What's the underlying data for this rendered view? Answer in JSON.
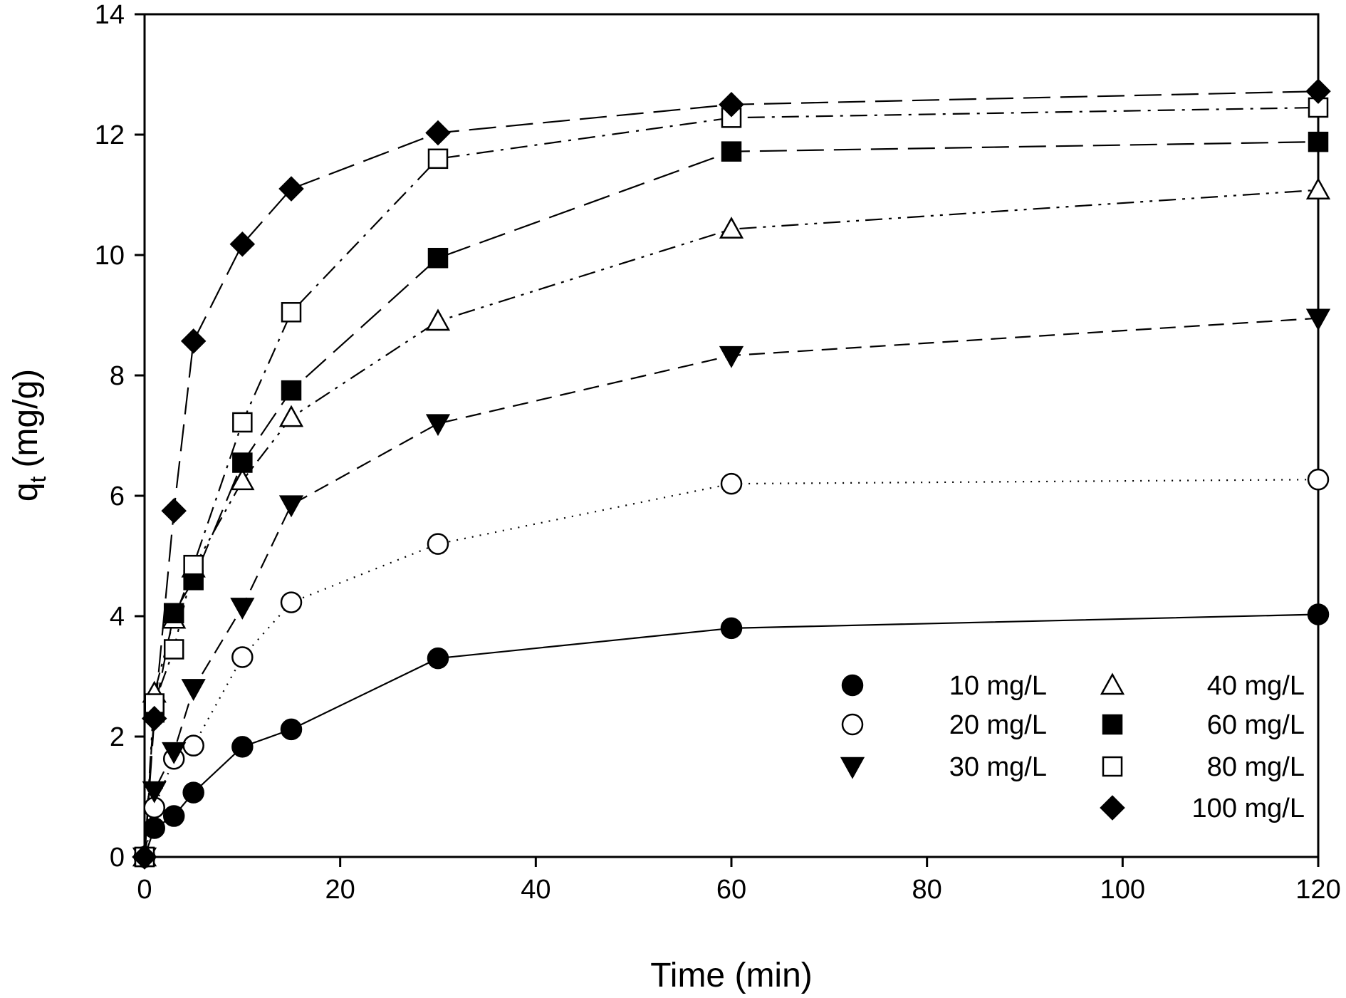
{
  "chart_data": {
    "type": "line",
    "xlabel": "Time (min)",
    "ylabel_main": "q",
    "ylabel_sub": "t",
    "ylabel_unit": "(mg/g)",
    "xlim": [
      0,
      120
    ],
    "ylim": [
      0,
      14
    ],
    "xticks": [
      0,
      20,
      40,
      60,
      80,
      100,
      120
    ],
    "yticks": [
      0,
      2,
      4,
      6,
      8,
      10,
      12,
      14
    ],
    "grid": false,
    "legend_position": "bottom-right",
    "x": [
      0,
      1,
      3,
      5,
      10,
      15,
      30,
      60,
      120
    ],
    "series": [
      {
        "name": "10 mg/L",
        "marker": "circle-filled",
        "line": "solid",
        "values": [
          0,
          0.48,
          0.68,
          1.07,
          1.83,
          2.12,
          3.3,
          3.8,
          4.03
        ]
      },
      {
        "name": "20 mg/L",
        "marker": "circle-open",
        "line": "dotted",
        "values": [
          0,
          0.82,
          1.63,
          1.85,
          3.32,
          4.23,
          5.2,
          6.2,
          6.27
        ]
      },
      {
        "name": "30 mg/L",
        "marker": "triangle-down-filled",
        "line": "dashed",
        "values": [
          0,
          1.1,
          1.75,
          2.8,
          4.15,
          5.85,
          7.2,
          8.33,
          8.95
        ]
      },
      {
        "name": "40 mg/L",
        "marker": "triangle-up-open",
        "line": "dash-dot-dot",
        "values": [
          0,
          2.72,
          3.95,
          4.8,
          6.25,
          7.3,
          8.9,
          10.43,
          11.08
        ]
      },
      {
        "name": "60 mg/L",
        "marker": "square-filled",
        "line": "long-dash",
        "values": [
          0,
          2.4,
          4.05,
          4.6,
          6.55,
          7.75,
          9.95,
          11.72,
          11.88
        ]
      },
      {
        "name": "80 mg/L",
        "marker": "square-open",
        "line": "dash-dot",
        "values": [
          0,
          2.55,
          3.45,
          4.85,
          7.22,
          9.05,
          11.6,
          12.28,
          12.45
        ]
      },
      {
        "name": "100 mg/L",
        "marker": "diamond-filled",
        "line": "long-dash",
        "values": [
          0,
          2.3,
          5.75,
          8.57,
          10.18,
          11.1,
          12.03,
          12.5,
          12.72
        ]
      }
    ]
  }
}
